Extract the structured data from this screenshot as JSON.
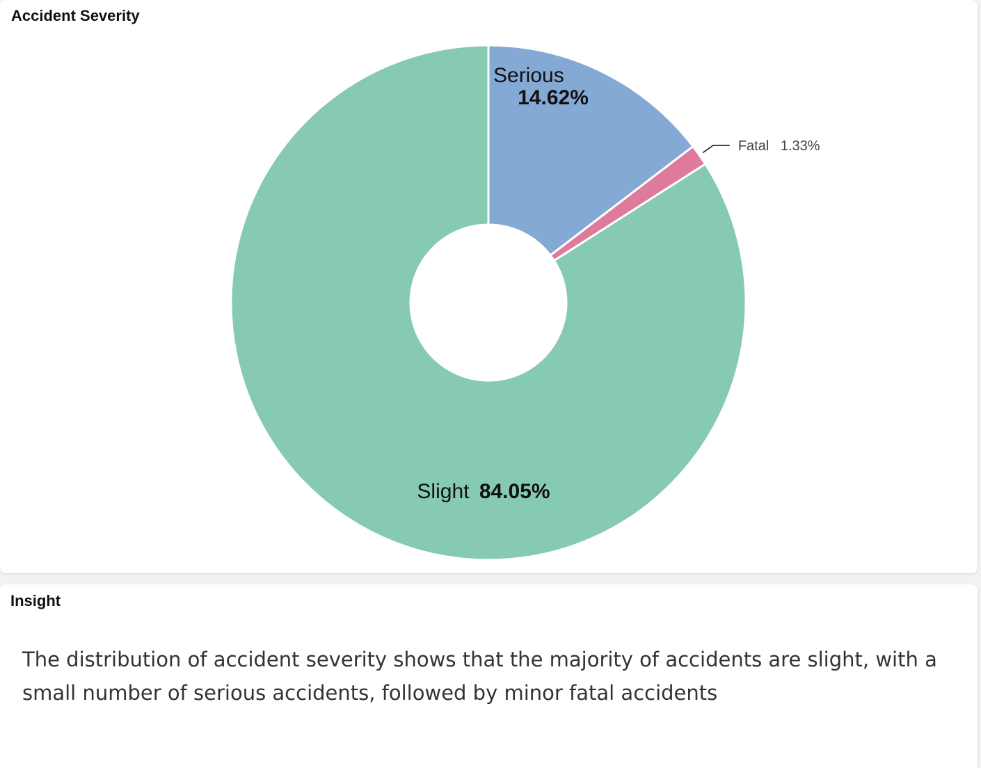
{
  "chart_panel": {
    "title": "Accident Severity"
  },
  "chart_data": {
    "type": "pie",
    "title": "Accident Severity",
    "slices": [
      {
        "label": "Serious",
        "value": 14.62,
        "value_text": "14.62%",
        "color": "#85a9d5"
      },
      {
        "label": "Fatal",
        "value": 1.33,
        "value_text": "1.33%",
        "color": "#de7b9d"
      },
      {
        "label": "Slight",
        "value": 84.05,
        "value_text": "84.05%",
        "color": "#86cab2"
      }
    ]
  },
  "insight_panel": {
    "title": "Insight",
    "text": "The distribution of accident severity shows that the majority of accidents are slight, with a small number of serious accidents, followed by minor fatal accidents"
  }
}
